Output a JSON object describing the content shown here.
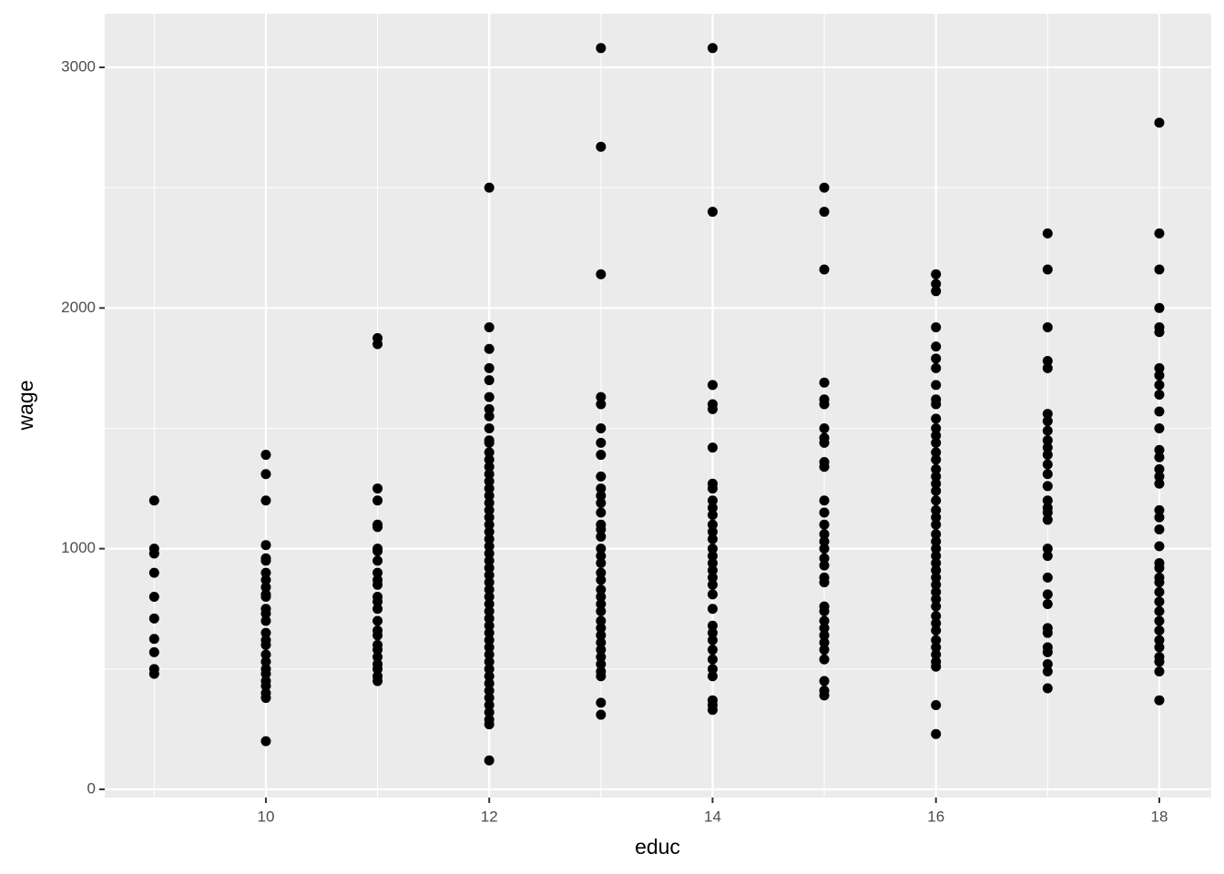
{
  "chart_data": {
    "type": "scatter",
    "x_label": "educ",
    "y_label": "wage",
    "xlim": [
      8.557,
      18.465
    ],
    "ylim": [
      -34,
      3223
    ],
    "xticks": [
      10,
      12,
      14,
      16,
      18
    ],
    "yticks": [
      0,
      1000,
      2000,
      3000
    ],
    "grid": true,
    "color": "#000000",
    "x": [
      9,
      9,
      9,
      9,
      9,
      9,
      9,
      9,
      9,
      9,
      10,
      10,
      10,
      10,
      10,
      10,
      10,
      10,
      10,
      10,
      10,
      10,
      10,
      10,
      10,
      10,
      10,
      10,
      10,
      10,
      10,
      10,
      10,
      10,
      10,
      10,
      11,
      11,
      11,
      11,
      11,
      11,
      11,
      11,
      11,
      11,
      11,
      11,
      11,
      11,
      11,
      11,
      11,
      11,
      11,
      11,
      11,
      11,
      11,
      11,
      11,
      12,
      12,
      12,
      12,
      12,
      12,
      12,
      12,
      12,
      12,
      12,
      12,
      12,
      12,
      12,
      12,
      12,
      12,
      12,
      12,
      12,
      12,
      12,
      12,
      12,
      12,
      12,
      12,
      12,
      12,
      12,
      12,
      12,
      12,
      12,
      12,
      12,
      12,
      12,
      12,
      12,
      12,
      12,
      12,
      12,
      12,
      12,
      12,
      12,
      12,
      12,
      13,
      13,
      13,
      13,
      13,
      13,
      13,
      13,
      13,
      13,
      13,
      13,
      13,
      13,
      13,
      13,
      13,
      13,
      13,
      13,
      13,
      13,
      13,
      13,
      13,
      13,
      13,
      13,
      13,
      13,
      13,
      13,
      13,
      13,
      13,
      13,
      14,
      14,
      14,
      14,
      14,
      14,
      14,
      14,
      14,
      14,
      14,
      14,
      14,
      14,
      14,
      14,
      14,
      14,
      14,
      14,
      14,
      14,
      14,
      14,
      14,
      14,
      14,
      14,
      14,
      14,
      14,
      14,
      15,
      15,
      15,
      15,
      15,
      15,
      15,
      15,
      15,
      15,
      15,
      15,
      15,
      15,
      15,
      15,
      15,
      15,
      15,
      15,
      15,
      15,
      15,
      15,
      15,
      15,
      15,
      15,
      15,
      15,
      15,
      15,
      16,
      16,
      16,
      16,
      16,
      16,
      16,
      16,
      16,
      16,
      16,
      16,
      16,
      16,
      16,
      16,
      16,
      16,
      16,
      16,
      16,
      16,
      16,
      16,
      16,
      16,
      16,
      16,
      16,
      16,
      16,
      16,
      16,
      16,
      16,
      16,
      16,
      16,
      16,
      16,
      16,
      16,
      16,
      16,
      16,
      17,
      17,
      17,
      17,
      17,
      17,
      17,
      17,
      17,
      17,
      17,
      17,
      17,
      17,
      17,
      17,
      17,
      17,
      17,
      17,
      17,
      17,
      17,
      17,
      17,
      17,
      17,
      17,
      17,
      17,
      18,
      18,
      18,
      18,
      18,
      18,
      18,
      18,
      18,
      18,
      18,
      18,
      18,
      18,
      18,
      18,
      18,
      18,
      18,
      18,
      18,
      18,
      18,
      18,
      18,
      18,
      18,
      18,
      18,
      18,
      18,
      18,
      18,
      18,
      18,
      18
    ],
    "y": [
      1200,
      1000,
      980,
      900,
      800,
      710,
      625,
      570,
      500,
      480,
      1390,
      1310,
      1200,
      1015,
      960,
      950,
      900,
      870,
      840,
      810,
      800,
      750,
      730,
      700,
      650,
      620,
      600,
      560,
      530,
      500,
      480,
      450,
      430,
      400,
      380,
      200,
      1875,
      1850,
      1250,
      1200,
      1100,
      1090,
      1000,
      990,
      950,
      900,
      870,
      850,
      800,
      780,
      750,
      700,
      660,
      640,
      600,
      580,
      550,
      520,
      500,
      470,
      450,
      2500,
      1920,
      1830,
      1750,
      1700,
      1630,
      1580,
      1550,
      1500,
      1450,
      1440,
      1400,
      1370,
      1340,
      1310,
      1280,
      1250,
      1220,
      1190,
      1160,
      1130,
      1100,
      1070,
      1040,
      1010,
      980,
      950,
      920,
      890,
      860,
      830,
      800,
      770,
      740,
      710,
      680,
      650,
      620,
      590,
      560,
      530,
      500,
      470,
      440,
      410,
      380,
      350,
      320,
      290,
      270,
      120,
      3080,
      2670,
      2140,
      1630,
      1600,
      1500,
      1440,
      1390,
      1300,
      1250,
      1220,
      1190,
      1150,
      1100,
      1080,
      1050,
      1000,
      970,
      940,
      900,
      870,
      830,
      800,
      770,
      740,
      700,
      670,
      640,
      610,
      580,
      550,
      520,
      490,
      470,
      360,
      310,
      3080,
      2400,
      1680,
      1600,
      1580,
      1420,
      1270,
      1250,
      1200,
      1170,
      1140,
      1100,
      1070,
      1040,
      1000,
      970,
      940,
      910,
      880,
      850,
      810,
      750,
      680,
      650,
      620,
      580,
      540,
      500,
      470,
      370,
      350,
      330,
      2500,
      2400,
      2160,
      1690,
      1620,
      1600,
      1500,
      1460,
      1440,
      1360,
      1340,
      1200,
      1150,
      1100,
      1060,
      1030,
      1000,
      960,
      930,
      880,
      860,
      760,
      740,
      700,
      670,
      640,
      610,
      580,
      540,
      450,
      410,
      390,
      2140,
      2100,
      2070,
      1920,
      1840,
      1790,
      1750,
      1680,
      1620,
      1600,
      1540,
      1500,
      1470,
      1440,
      1400,
      1370,
      1330,
      1300,
      1270,
      1240,
      1200,
      1160,
      1130,
      1100,
      1060,
      1030,
      1000,
      970,
      940,
      910,
      880,
      850,
      820,
      790,
      760,
      720,
      690,
      660,
      620,
      590,
      560,
      530,
      510,
      350,
      230,
      2310,
      2160,
      1920,
      1780,
      1750,
      1560,
      1530,
      1490,
      1450,
      1420,
      1390,
      1350,
      1310,
      1260,
      1200,
      1170,
      1150,
      1120,
      1000,
      970,
      880,
      810,
      770,
      670,
      650,
      590,
      570,
      520,
      490,
      420,
      2770,
      2310,
      2160,
      2000,
      1920,
      1900,
      1750,
      1720,
      1680,
      1640,
      1570,
      1500,
      1410,
      1380,
      1330,
      1300,
      1270,
      1160,
      1130,
      1080,
      1010,
      940,
      920,
      880,
      860,
      820,
      780,
      740,
      700,
      660,
      620,
      590,
      550,
      530,
      490,
      370
    ]
  }
}
